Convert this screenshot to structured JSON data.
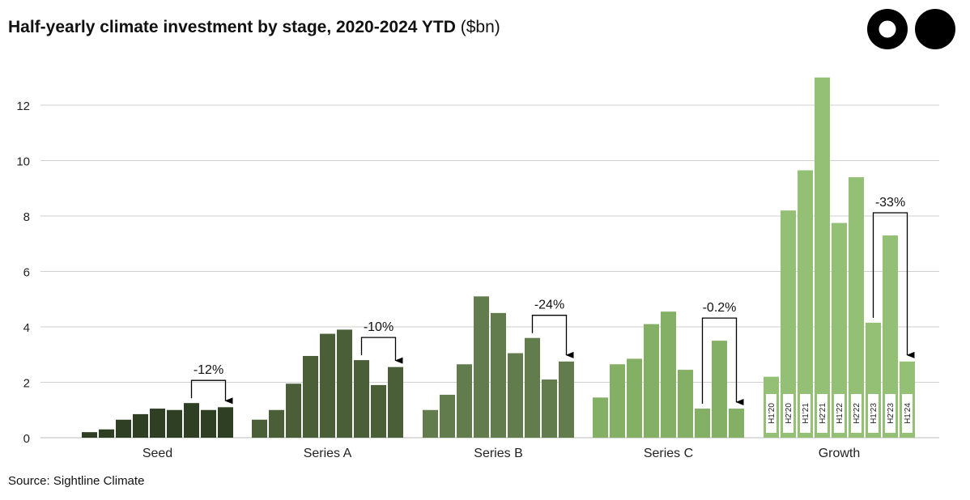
{
  "title": "Half-yearly climate investment by stage, 2020-2024 YTD",
  "title_unit": "($bn)",
  "source": "Source: Sightline Climate",
  "chart_data": {
    "type": "bar",
    "ylim": [
      0,
      13
    ],
    "yticks": [
      0,
      2,
      4,
      6,
      8,
      10,
      12
    ],
    "grid": true,
    "period_labels": [
      "H1'20",
      "H2'20",
      "H1'21",
      "H2'21",
      "H1'22",
      "H2'22",
      "H1'23",
      "H2'23",
      "H1'24"
    ],
    "groups": [
      {
        "name": "Seed",
        "color": "#2f3f24",
        "values": [
          0.2,
          0.3,
          0.65,
          0.85,
          1.05,
          1.0,
          1.25,
          1.0,
          1.1
        ],
        "change": "-12%"
      },
      {
        "name": "Series A",
        "color": "#4a5e38",
        "values": [
          0.65,
          1.0,
          1.95,
          2.95,
          3.75,
          3.9,
          2.8,
          1.9,
          2.55
        ],
        "change": "-10%"
      },
      {
        "name": "Series B",
        "color": "#637c4d",
        "values": [
          1.0,
          1.55,
          2.65,
          5.1,
          4.5,
          3.05,
          3.6,
          2.1,
          2.75
        ],
        "change": "-24%"
      },
      {
        "name": "Series C",
        "color": "#84b065",
        "values": [
          1.45,
          2.65,
          2.85,
          4.1,
          4.55,
          2.45,
          1.05,
          3.5,
          1.05
        ],
        "change": "-0.2%"
      },
      {
        "name": "Growth",
        "color": "#93c074",
        "values": [
          2.2,
          8.2,
          9.65,
          13.0,
          7.75,
          9.4,
          4.15,
          7.3,
          2.75
        ],
        "change": "-33%"
      }
    ]
  }
}
